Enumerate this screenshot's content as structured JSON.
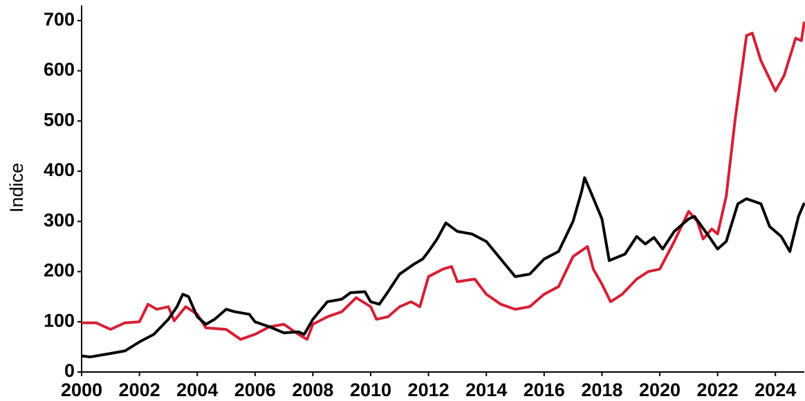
{
  "chart_data": {
    "type": "line",
    "ylabel": "Indice",
    "xlim": [
      2000,
      2025
    ],
    "xticks": [
      2000,
      2002,
      2004,
      2006,
      2008,
      2010,
      2012,
      2014,
      2016,
      2018,
      2020,
      2022,
      2024
    ],
    "ylim": [
      0,
      730
    ],
    "yticks": [
      0,
      100,
      200,
      300,
      400,
      500,
      600,
      700
    ],
    "grid": false,
    "series": [
      {
        "color": "#d42035",
        "x": [
          2000,
          2000.5,
          2001,
          2001.5,
          2002,
          2002.3,
          2002.6,
          2003,
          2003.2,
          2003.6,
          2004,
          2004.3,
          2005,
          2005.5,
          2006,
          2006.5,
          2007,
          2007.5,
          2007.8,
          2008,
          2008.5,
          2009,
          2009.5,
          2010,
          2010.2,
          2010.6,
          2011,
          2011.4,
          2011.7,
          2012,
          2012.5,
          2012.8,
          2013,
          2013.6,
          2014,
          2014.5,
          2015,
          2015.5,
          2016,
          2016.5,
          2017,
          2017.5,
          2017.7,
          2018,
          2018.3,
          2018.7,
          2019.2,
          2019.6,
          2020,
          2020.5,
          2021,
          2021.3,
          2021.5,
          2021.8,
          2022,
          2022.3,
          2022.6,
          2023,
          2023.2,
          2023.5,
          2024,
          2024.3,
          2024.7,
          2024.9,
          2025
        ],
        "values": [
          98,
          98,
          85,
          98,
          100,
          135,
          125,
          130,
          102,
          130,
          115,
          88,
          85,
          65,
          75,
          90,
          95,
          75,
          65,
          95,
          110,
          120,
          148,
          130,
          105,
          110,
          130,
          140,
          130,
          190,
          205,
          210,
          180,
          185,
          155,
          135,
          125,
          130,
          155,
          170,
          230,
          250,
          205,
          175,
          140,
          155,
          185,
          200,
          205,
          260,
          320,
          300,
          265,
          285,
          275,
          350,
          500,
          670,
          675,
          620,
          560,
          590,
          665,
          660,
          698
        ]
      },
      {
        "color": "#000000",
        "x": [
          2000,
          2000.3,
          2000.5,
          2001,
          2001.5,
          2002,
          2002.5,
          2003,
          2003.3,
          2003.5,
          2003.7,
          2004,
          2004.3,
          2004.6,
          2005,
          2005.3,
          2005.8,
          2006,
          2006.5,
          2007,
          2007.5,
          2007.7,
          2008,
          2008.5,
          2009,
          2009.3,
          2009.8,
          2010,
          2010.3,
          2010.6,
          2011,
          2011.5,
          2011.8,
          2012,
          2012.3,
          2012.6,
          2013,
          2013.5,
          2014,
          2014.5,
          2015,
          2015.5,
          2016,
          2016.5,
          2017,
          2017.3,
          2017.4,
          2017.6,
          2018,
          2018.25,
          2018.8,
          2019.2,
          2019.5,
          2019.8,
          2020.1,
          2020.5,
          2021,
          2021.2,
          2021.7,
          2022,
          2022.3,
          2022.7,
          2023,
          2023.5,
          2023.8,
          2024.2,
          2024.5,
          2024.8,
          2025
        ],
        "values": [
          32,
          30,
          32,
          37,
          42,
          60,
          75,
          105,
          130,
          155,
          150,
          110,
          95,
          105,
          125,
          120,
          115,
          100,
          90,
          78,
          80,
          75,
          105,
          140,
          145,
          158,
          160,
          140,
          135,
          160,
          195,
          215,
          225,
          240,
          265,
          297,
          280,
          275,
          260,
          225,
          190,
          195,
          225,
          240,
          300,
          360,
          387,
          360,
          305,
          222,
          235,
          270,
          255,
          268,
          245,
          280,
          305,
          310,
          270,
          245,
          260,
          335,
          345,
          335,
          290,
          270,
          240,
          310,
          337
        ]
      }
    ]
  }
}
